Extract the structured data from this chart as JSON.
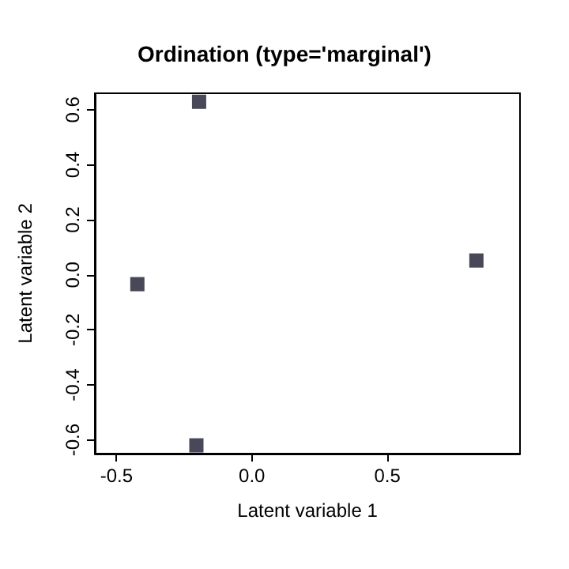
{
  "chart_data": {
    "type": "scatter",
    "title": "Ordination (type='marginal')",
    "xlabel": "Latent variable 1",
    "ylabel": "Latent variable 2",
    "x": [
      -0.195,
      0.829,
      -0.423,
      -0.205
    ],
    "values": [
      0.629,
      0.052,
      -0.034,
      -0.62
    ],
    "color": "#1a1a2e",
    "marker": "square",
    "xlim": [
      -0.58,
      0.99
    ],
    "xticks": [
      {
        "value": -0.5,
        "label": "-0.5"
      },
      {
        "value": 0,
        "label": "0.0"
      },
      {
        "value": 0.5,
        "label": "0.5"
      }
    ],
    "ylim": [
      -0.65,
      0.66
    ],
    "yticks": [
      {
        "value": -0.6,
        "label": "-0.6"
      },
      {
        "value": -0.4,
        "label": "-0.4"
      },
      {
        "value": -0.2,
        "label": "-0.2"
      },
      {
        "value": 0,
        "label": "0.0"
      },
      {
        "value": 0.2,
        "label": "0.2"
      },
      {
        "value": 0.4,
        "label": "0.4"
      },
      {
        "value": 0.6,
        "label": "0.6"
      }
    ],
    "grid": false
  }
}
